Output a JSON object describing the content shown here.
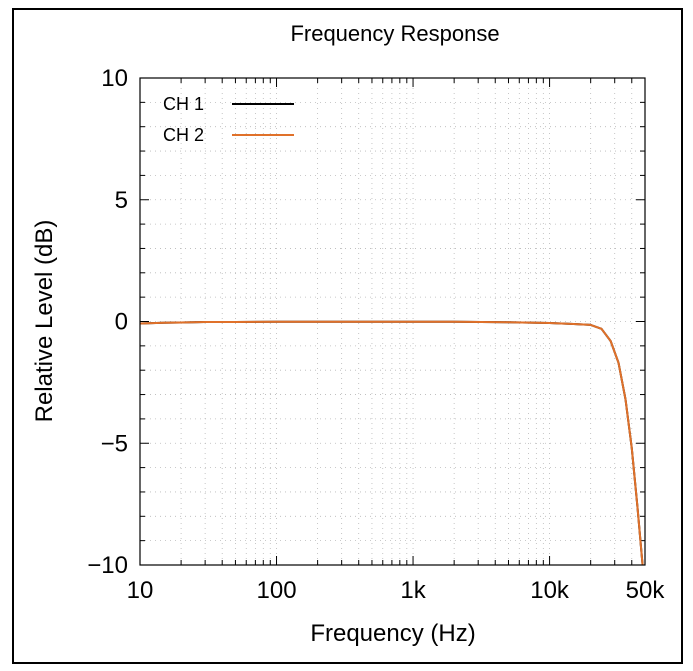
{
  "chart_data": {
    "type": "line",
    "title": "Frequency Response",
    "xlabel": "Frequency (Hz)",
    "ylabel": "Relative Level (dB)",
    "x_scale": "log",
    "xlim": [
      10,
      50000
    ],
    "ylim": [
      -10,
      10
    ],
    "x_ticks": [
      10,
      100,
      1000,
      10000,
      50000
    ],
    "x_tick_labels": [
      "10",
      "100",
      "1k",
      "10k",
      "50k"
    ],
    "y_ticks": [
      -10,
      -5,
      0,
      5,
      10
    ],
    "y_tick_labels": [
      "−10",
      "−5",
      "0",
      "5",
      "10"
    ],
    "grid": true,
    "legend_position": "top-left",
    "series": [
      {
        "name": "CH 1",
        "color": "#000000",
        "x": [
          10,
          15,
          20,
          30,
          50,
          100,
          200,
          500,
          1000,
          2000,
          5000,
          10000,
          15000,
          20000,
          24000,
          28000,
          32000,
          36000,
          40000,
          44000,
          48000
        ],
        "y": [
          -0.08,
          -0.05,
          -0.04,
          -0.02,
          -0.02,
          -0.01,
          -0.01,
          -0.01,
          -0.01,
          -0.01,
          -0.03,
          -0.06,
          -0.1,
          -0.14,
          -0.3,
          -0.8,
          -1.7,
          -3.2,
          -5.2,
          -7.6,
          -10
        ]
      },
      {
        "name": "CH 2",
        "color": "#e0712a",
        "x": [
          10,
          15,
          20,
          30,
          50,
          100,
          200,
          500,
          1000,
          2000,
          5000,
          10000,
          15000,
          20000,
          24000,
          28000,
          32000,
          36000,
          40000,
          44000,
          48000
        ],
        "y": [
          -0.08,
          -0.05,
          -0.04,
          -0.02,
          -0.02,
          -0.01,
          -0.01,
          -0.01,
          -0.01,
          -0.01,
          -0.03,
          -0.06,
          -0.1,
          -0.14,
          -0.3,
          -0.8,
          -1.7,
          -3.2,
          -5.2,
          -7.6,
          -10
        ]
      }
    ]
  }
}
